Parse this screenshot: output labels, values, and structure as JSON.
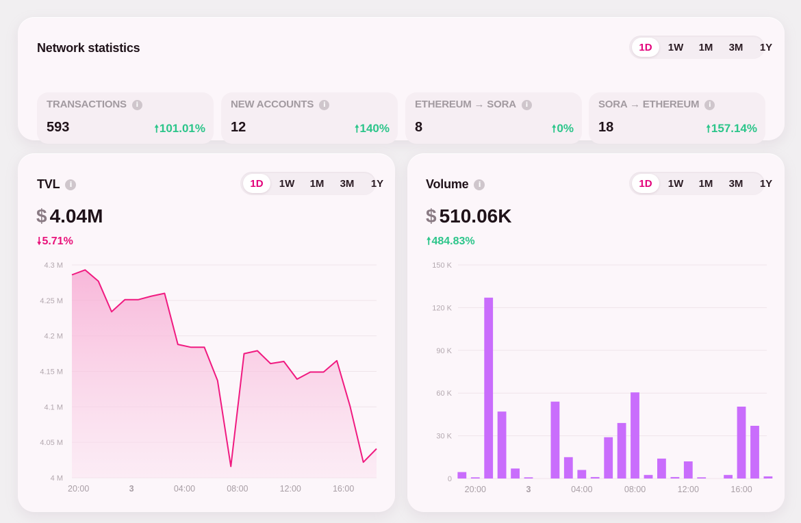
{
  "periods": [
    "1D",
    "1W",
    "1M",
    "3M",
    "1Y"
  ],
  "active_period": "1D",
  "network": {
    "title": "Network statistics",
    "stats": [
      {
        "label": "TRANSACTIONS",
        "value": "593",
        "change": "101.01%"
      },
      {
        "label": "NEW ACCOUNTS",
        "value": "12",
        "change": "140%"
      },
      {
        "label": "ETHEREUM → SORA",
        "value": "8",
        "change": "0%"
      },
      {
        "label": "SORA → ETHEREUM",
        "value": "18",
        "change": "157.14%"
      }
    ]
  },
  "tvl": {
    "title": "TVL",
    "currency": "$",
    "value": "4.04M",
    "change": "5.71%",
    "change_direction": "down"
  },
  "volume": {
    "title": "Volume",
    "currency": "$",
    "value": "510.06K",
    "change": "484.83%",
    "change_direction": "up"
  },
  "colors": {
    "accent": "#e2007a",
    "line": "#f01a80",
    "bar": "#c96dfc",
    "positive": "#2cc58a",
    "negative": "#e8127a"
  },
  "chart_data": [
    {
      "type": "area",
      "name": "TVL",
      "ylim": [
        4.0,
        4.3
      ],
      "y_ticks": [
        "4 M",
        "4.05 M",
        "4.1 M",
        "4.15 M",
        "4.2 M",
        "4.25 M",
        "4.3 M"
      ],
      "y_tick_values": [
        4.0,
        4.05,
        4.1,
        4.15,
        4.2,
        4.25,
        4.3
      ],
      "x_ticks": [
        "20:00",
        "3",
        "04:00",
        "08:00",
        "12:00",
        "16:00"
      ],
      "x_tick_hours": [
        0,
        4,
        8,
        12,
        16,
        20
      ],
      "x_range_hours": [
        -0.5,
        22.5
      ],
      "x_hours": [
        -0.5,
        0.5,
        1.5,
        2.5,
        3.5,
        4.5,
        5.5,
        6.5,
        7.5,
        8.5,
        9.5,
        10.5,
        11.5,
        12.5,
        13.5,
        14.5,
        15.5,
        16.5,
        17.5,
        18.5,
        19.5,
        20.5,
        21.5,
        22.5
      ],
      "values": [
        4.286,
        4.293,
        4.277,
        4.234,
        4.251,
        4.251,
        4.256,
        4.26,
        4.188,
        4.184,
        4.184,
        4.137,
        4.016,
        4.175,
        4.179,
        4.161,
        4.164,
        4.139,
        4.149,
        4.149,
        4.165,
        4.101,
        4.022,
        4.041
      ]
    },
    {
      "type": "bar",
      "name": "Volume",
      "ylim": [
        0,
        150000
      ],
      "y_ticks": [
        "0",
        "30 K",
        "60 K",
        "90 K",
        "120 K",
        "150 K"
      ],
      "y_tick_values": [
        0,
        30000,
        60000,
        90000,
        120000,
        150000
      ],
      "x_ticks": [
        "20:00",
        "3",
        "04:00",
        "08:00",
        "12:00",
        "16:00"
      ],
      "x_tick_hours": [
        0,
        4,
        8,
        12,
        16,
        20
      ],
      "x_range_hours": [
        -1.3,
        21.9
      ],
      "x_hours": [
        -1,
        0,
        1,
        2,
        3,
        4,
        5,
        6,
        7,
        8,
        9,
        10,
        11,
        12,
        13,
        14,
        15,
        16,
        17,
        18,
        19,
        20,
        21,
        22
      ],
      "values": [
        4500,
        800,
        127000,
        47000,
        7000,
        800,
        0,
        54000,
        15000,
        6000,
        1000,
        29000,
        39000,
        60500,
        2500,
        14000,
        1000,
        12000,
        800,
        0,
        2500,
        50500,
        37000,
        1500
      ]
    }
  ]
}
